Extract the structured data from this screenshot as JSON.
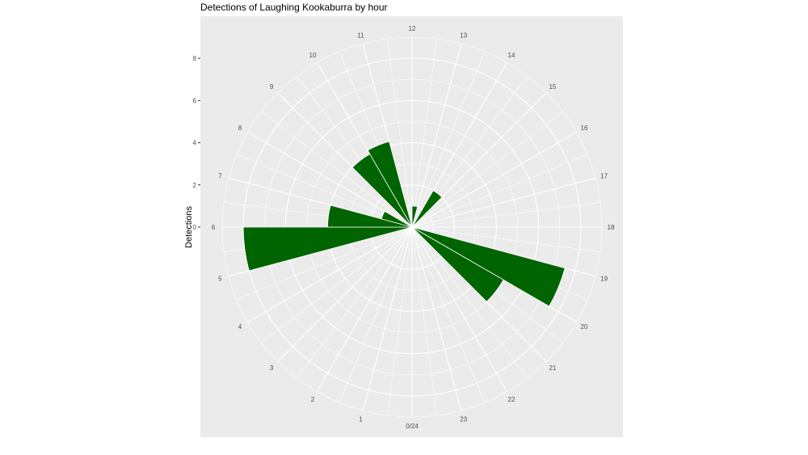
{
  "chart_data": {
    "type": "bar",
    "coord": "polar",
    "title": "Detections of Laughing Kookaburra by hour",
    "xlabel": "",
    "ylabel": "Detections",
    "categories": [
      "0/24",
      "1",
      "2",
      "3",
      "4",
      "5",
      "6",
      "7",
      "8",
      "9",
      "10",
      "11",
      "12",
      "13",
      "14",
      "15",
      "16",
      "17",
      "18",
      "19",
      "20",
      "21",
      "22",
      "23"
    ],
    "angle_tick_labels": [
      "0/24",
      "1",
      "2",
      "3",
      "4",
      "5",
      "6",
      "7",
      "8",
      "9",
      "10",
      "11",
      "12",
      "13",
      "14",
      "15",
      "16",
      "17",
      "18",
      "19",
      "20",
      "21",
      "22",
      "23"
    ],
    "bars": [
      {
        "hour": 5.5,
        "value": 8
      },
      {
        "hour": 6.5,
        "value": 4
      },
      {
        "hour": 7.5,
        "value": 1.5
      },
      {
        "hour": 9.5,
        "value": 4
      },
      {
        "hour": 10.5,
        "value": 4.2
      },
      {
        "hour": 12.5,
        "value": 1
      },
      {
        "hour": 14.5,
        "value": 2
      },
      {
        "hour": 19.5,
        "value": 7.5
      },
      {
        "hour": 20.5,
        "value": 5
      }
    ],
    "bar_color": "#006400",
    "y_ticks": [
      0,
      2,
      4,
      6,
      8
    ],
    "ylim": [
      0,
      9
    ],
    "grid": true,
    "panel_background": "#ebebeb",
    "grid_color": "#ffffff",
    "legend": "none"
  }
}
